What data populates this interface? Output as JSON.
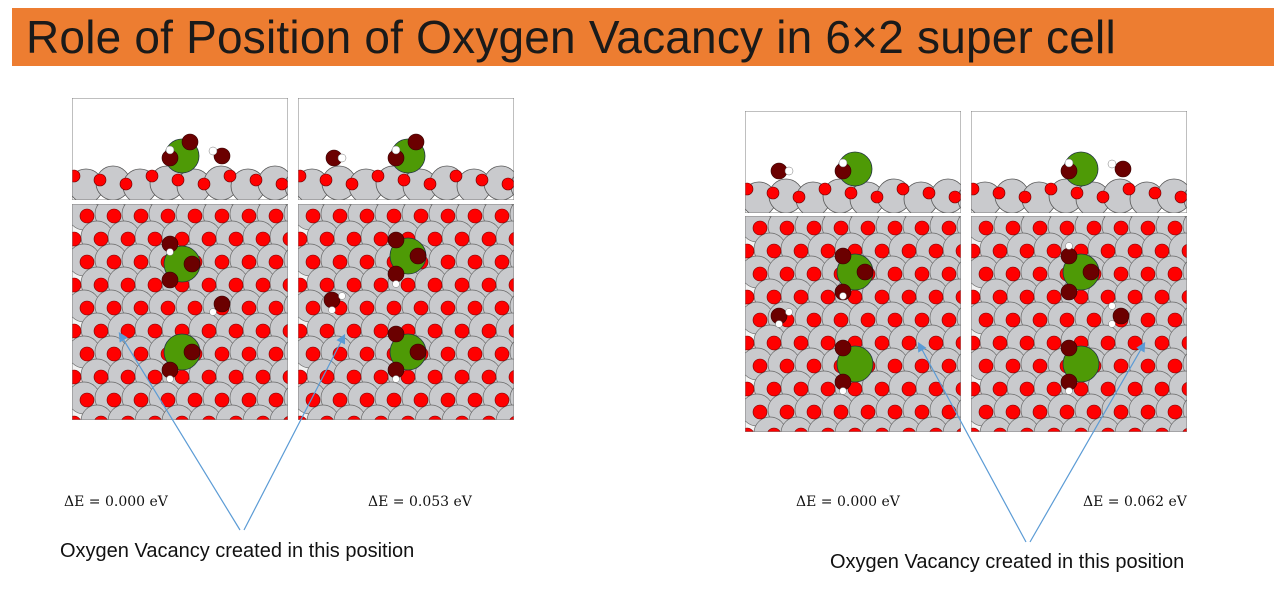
{
  "title": "Role of Position of Oxygen Vacancy in 6×2  super cell",
  "colors": {
    "banner": "#ed7d31",
    "metal_atom": "#c9cacd",
    "oxygen_atom": "#ff0000",
    "dopant_atom": "#4e9a06",
    "adsorbate_oxygen": "#6b0000",
    "hydrogen_atom": "#ffffff",
    "vacancy_arrow": "#5b9bd5"
  },
  "groups": [
    {
      "panels": [
        {
          "energy_label": "ΔE  = 0.000 eV"
        },
        {
          "energy_label": "ΔE  = 0.053 eV"
        }
      ],
      "caption": "Oxygen Vacancy created in this position"
    },
    {
      "panels": [
        {
          "energy_label": "ΔE  = 0.000 eV"
        },
        {
          "energy_label": "ΔE  = 0.062 eV"
        }
      ],
      "caption": "Oxygen Vacancy created in this position"
    }
  ]
}
